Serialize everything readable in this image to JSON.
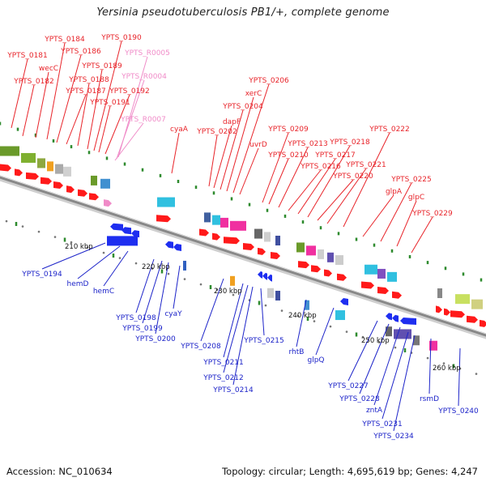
{
  "title": "Yersinia pseudotuberculosis PB1/+, complete genome",
  "footer": {
    "accession": "Accession: NC_010634",
    "stats": "Topology: circular; Length: 4,695,619 bp; Genes: 4,247"
  },
  "colors": {
    "forward_label": "#e8242a",
    "reverse_label": "#1d24c9",
    "rna_label": "#f08bc8",
    "forward_gene": "#ff1a1a",
    "reverse_gene": "#1e2ef0",
    "backbone": "#888888",
    "tick": "#2e8b2e"
  },
  "scale_labels": [
    "210 kbp",
    "220 kbp",
    "230 kbp",
    "240 kbp",
    "250 kbp",
    "260 kbp"
  ],
  "forward_labels": [
    "YPTS_0181",
    "YPTS_0182",
    "wecC",
    "YPTS_0184",
    "YPTS_0186",
    "YPTS_0187",
    "YPTS_0188",
    "YPTS_0189",
    "YPTS_0190",
    "YPTS_0191",
    "YPTS_0192",
    "cyaA",
    "YPTS_0202",
    "dapF",
    "YPTS_0204",
    "xerC",
    "YPTS_0206",
    "uvrD",
    "YPTS_0209",
    "YPTS_0210",
    "YPTS_0213",
    "YPTS_0216",
    "YPTS_0217",
    "YPTS_0218",
    "YPTS_0220",
    "YPTS_0221",
    "YPTS_0222",
    "glpA",
    "YPTS_0225",
    "glpC",
    "YPTS_0229"
  ],
  "rna_labels": [
    "YPTS_R0005",
    "YPTS_R0004",
    "YPTS_R0007"
  ],
  "reverse_labels": [
    "YPTS_0194",
    "hemD",
    "hemC",
    "YPTS_0198",
    "YPTS_0199",
    "YPTS_0200",
    "cyaY",
    "YPTS_0208",
    "YPTS_0211",
    "YPTS_0212",
    "YPTS_0214",
    "YPTS_0215",
    "rhtB",
    "glpQ",
    "YPTS_0227",
    "YPTS_0228",
    "zntA",
    "YPTS_0231",
    "YPTS_0234",
    "rsmD",
    "YPTS_0240"
  ]
}
